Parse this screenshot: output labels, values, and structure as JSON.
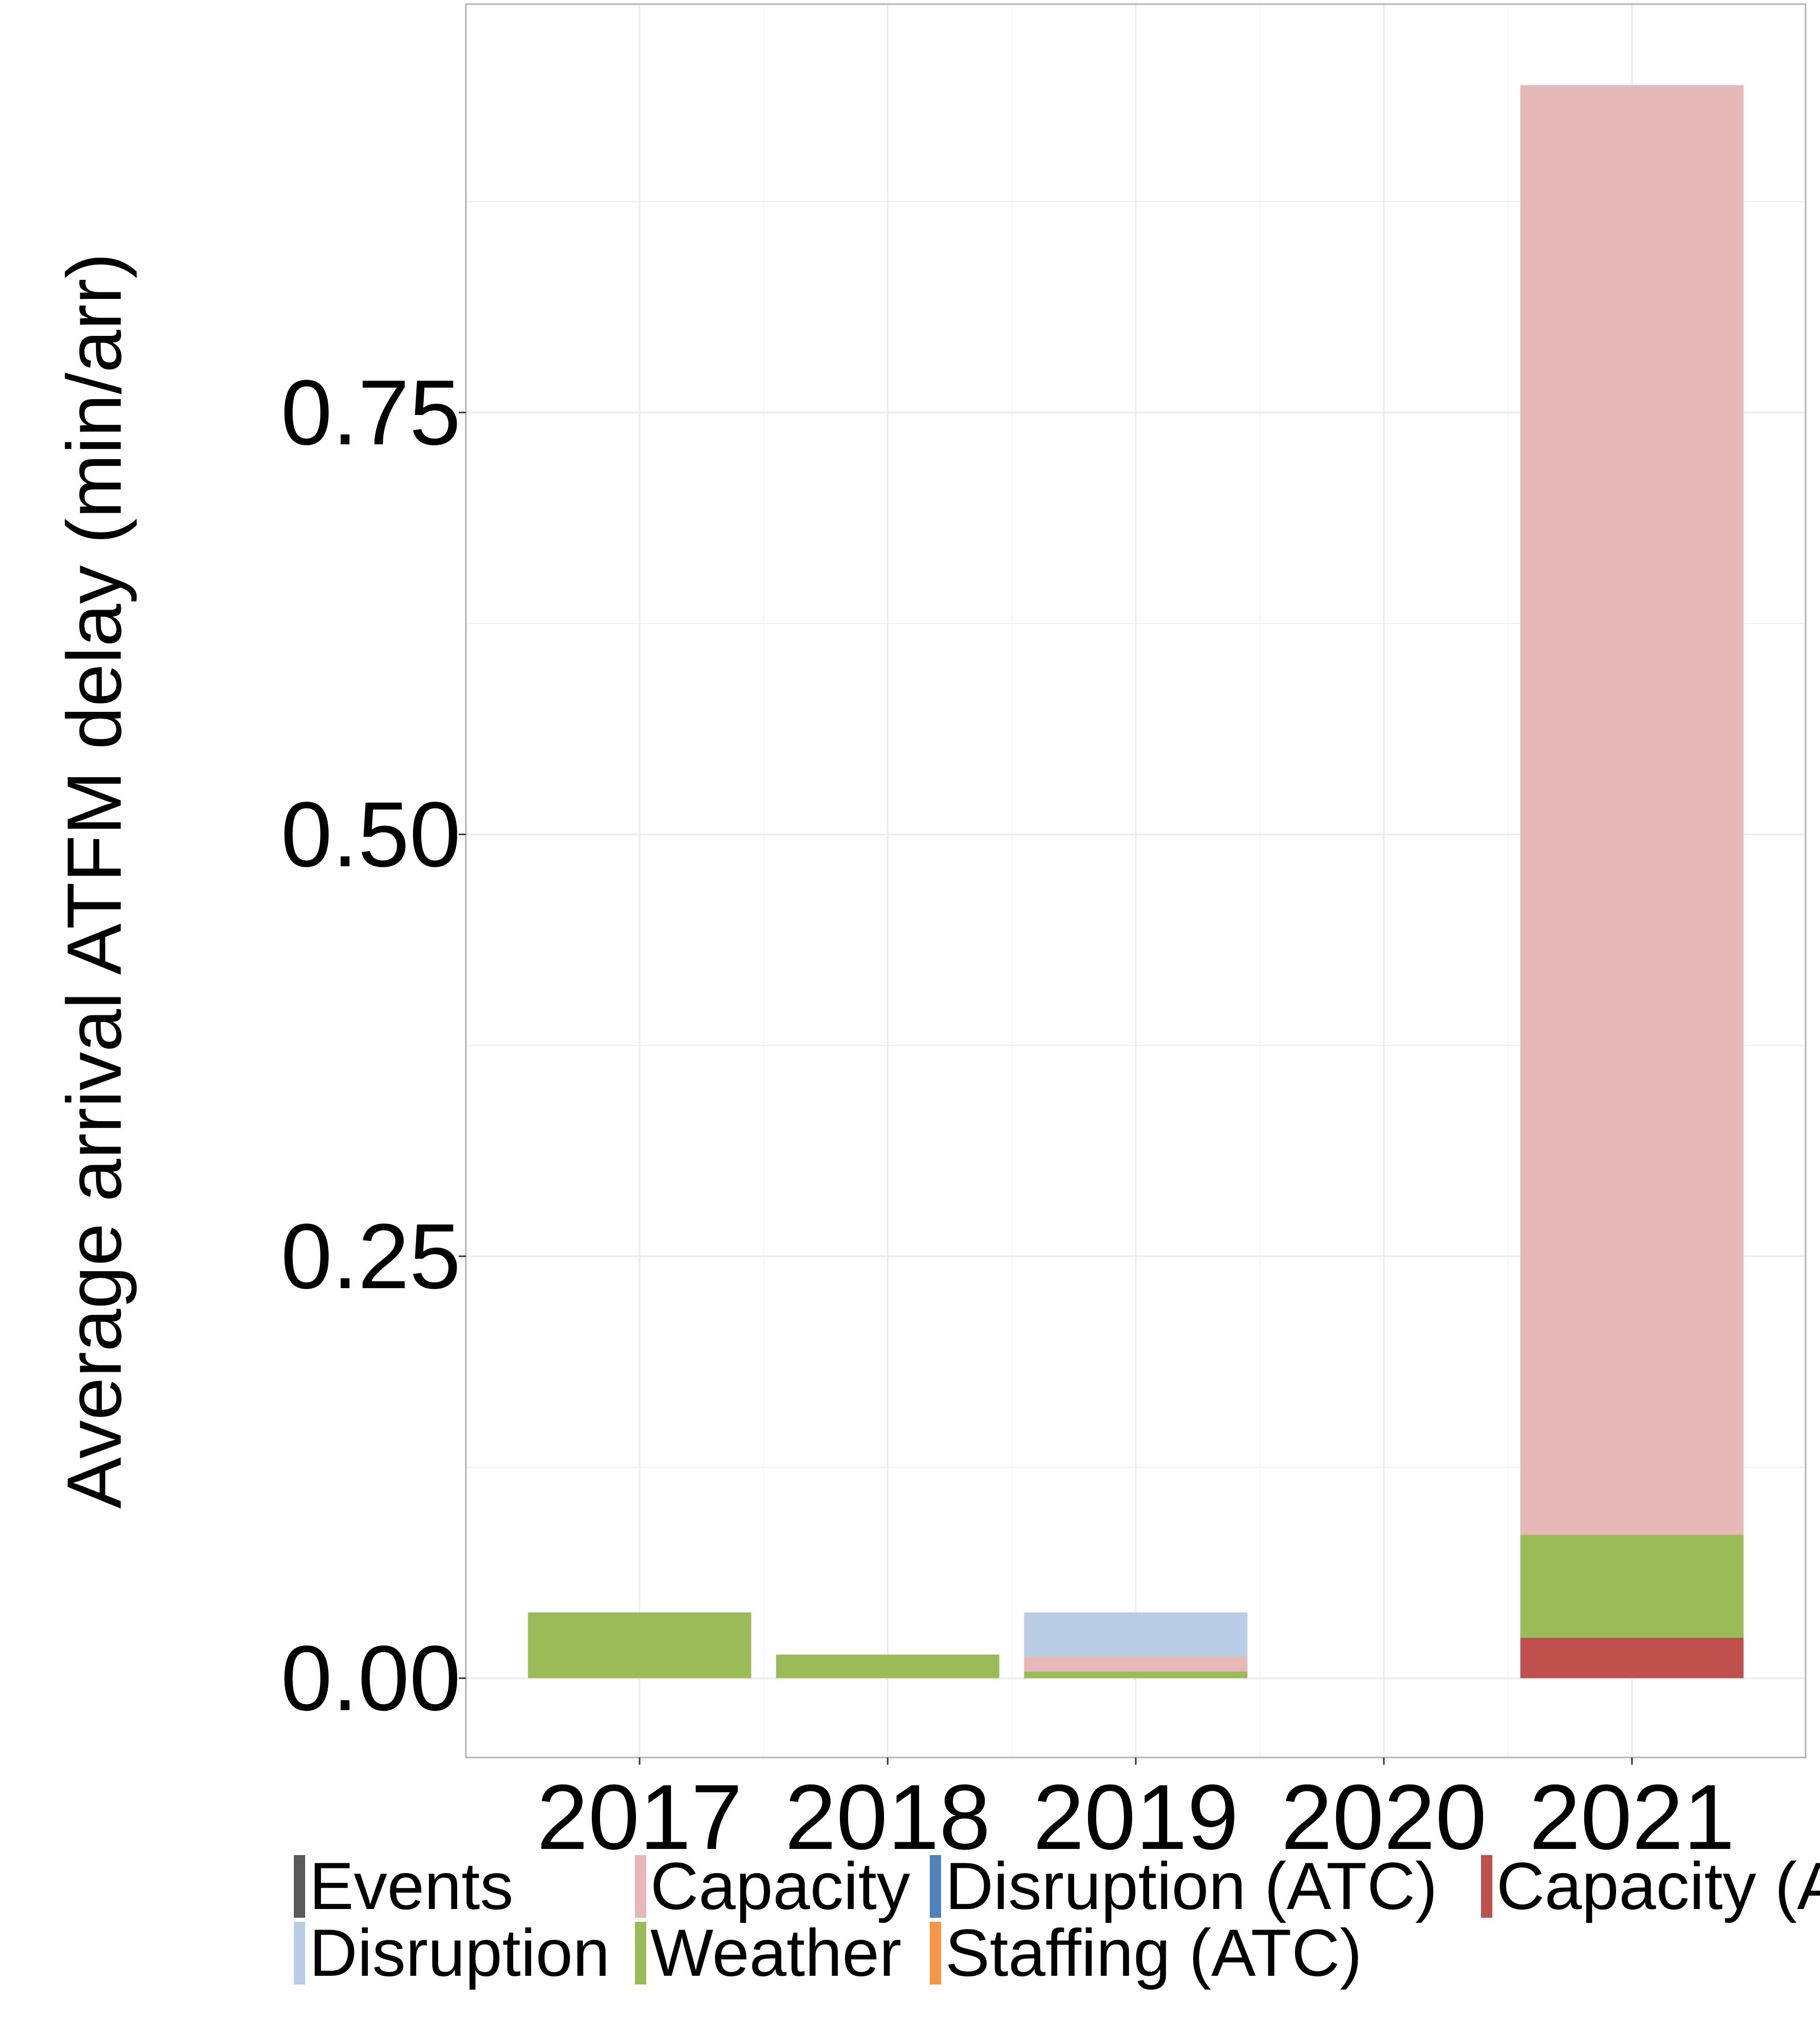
{
  "chart_data": {
    "type": "bar",
    "stacked": true,
    "ylabel": "Average arrival ATFM delay (min/arr)",
    "xlabel": "",
    "categories": [
      "2017",
      "2018",
      "2019",
      "2020",
      "2021"
    ],
    "ylim": [
      -0.047,
      0.992
    ],
    "yticks": [
      0.0,
      0.25,
      0.5,
      0.75
    ],
    "ytick_labels": [
      "0.00",
      "0.25",
      "0.50",
      "0.75"
    ],
    "grid": true,
    "legend_position": "bottom",
    "series": [
      {
        "name": "Capacity (ATC)",
        "color": "#c0504d",
        "values": [
          0,
          0,
          0,
          0,
          0.024
        ]
      },
      {
        "name": "Weather",
        "color": "#9bbb59",
        "values": [
          0.039,
          0.014,
          0.004,
          0,
          0.061
        ]
      },
      {
        "name": "Capacity",
        "color": "#e6b8b7",
        "values": [
          0,
          0,
          0.009,
          0,
          0.859
        ]
      },
      {
        "name": "Disruption",
        "color": "#b9cde5",
        "values": [
          0,
          0,
          0.026,
          0,
          0
        ]
      },
      {
        "name": "Events",
        "color": "#595959",
        "values": [
          0,
          0,
          0,
          0,
          0
        ]
      },
      {
        "name": "Disruption (ATC)",
        "color": "#4f81bd",
        "values": [
          0,
          0,
          0,
          0,
          0
        ]
      },
      {
        "name": "Staffing (ATC)",
        "color": "#f79646",
        "values": [
          0,
          0,
          0,
          0,
          0
        ]
      }
    ],
    "legend": [
      {
        "label": "Events",
        "color": "#595959"
      },
      {
        "label": "Capacity",
        "color": "#e6b8b7"
      },
      {
        "label": "Disruption (ATC)",
        "color": "#4f81bd"
      },
      {
        "label": "Capacity (ATC)",
        "color": "#c0504d"
      },
      {
        "label": "Disruption",
        "color": "#b9cde5"
      },
      {
        "label": "Weather",
        "color": "#9bbb59"
      },
      {
        "label": "Staffing (ATC)",
        "color": "#f79646"
      }
    ]
  }
}
